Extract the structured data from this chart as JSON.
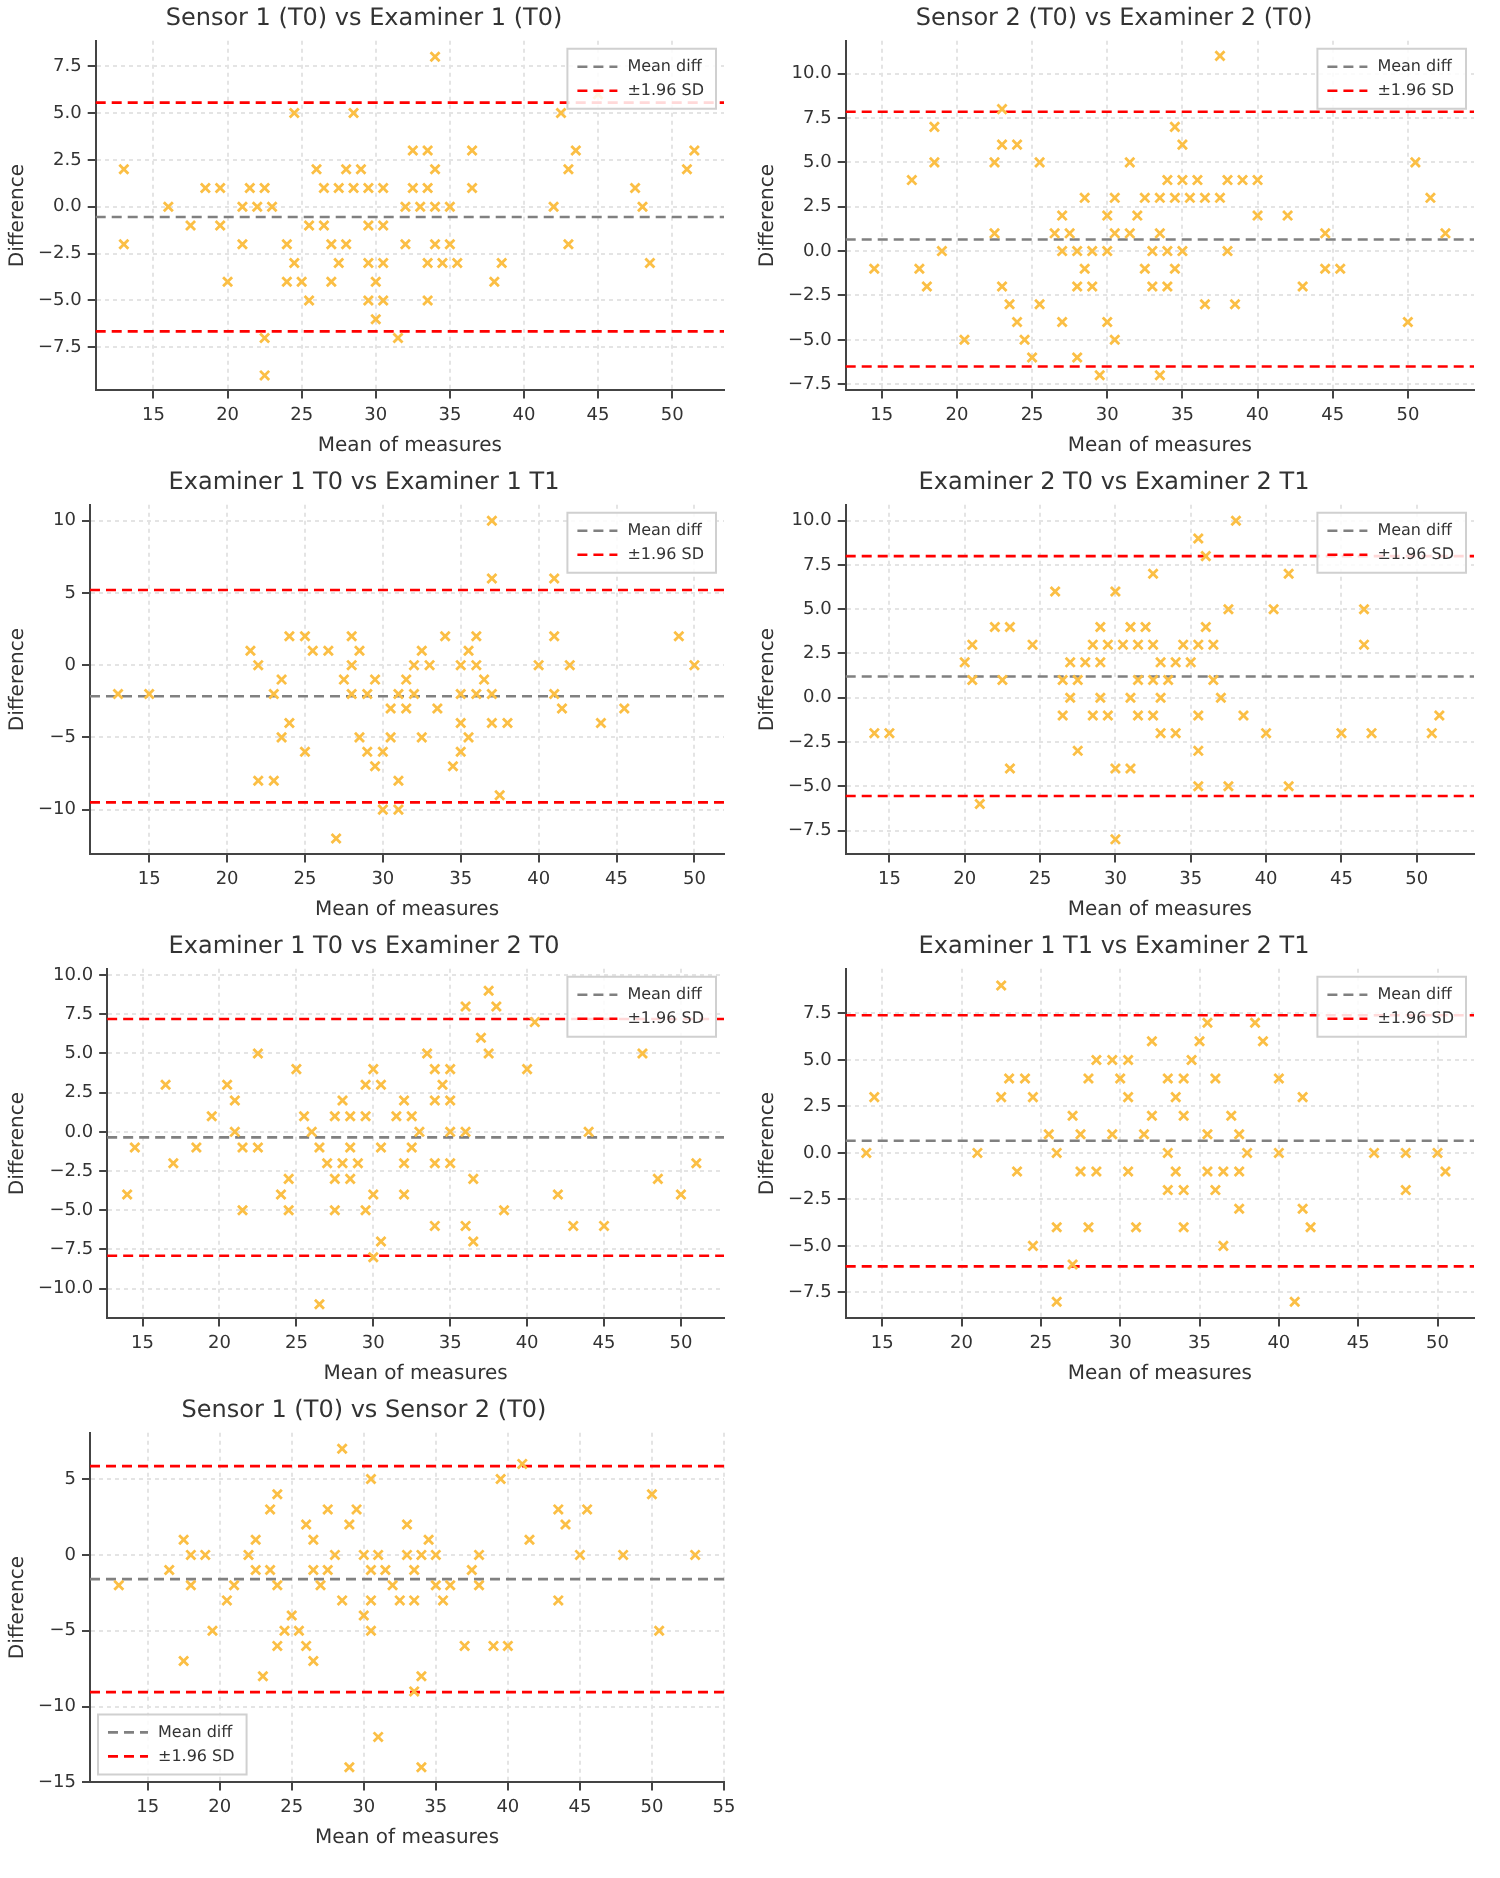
{
  "chart_data": [
    {
      "type": "scatter",
      "title": "Sensor 1 (T0) vs Examiner 1 (T0)",
      "xlabel": "Mean of measures",
      "ylabel": "Difference",
      "xlim": [
        11.1,
        53.5
      ],
      "xticks": [
        15,
        20,
        25,
        30,
        35,
        40,
        45,
        50
      ],
      "ylim": [
        -9.8,
        8.85
      ],
      "yticks": [
        {
          "value": -7.5,
          "label": "−7.5"
        },
        {
          "value": -5,
          "label": "−5.0"
        },
        {
          "value": -2.5,
          "label": "−2.5"
        },
        {
          "value": 0,
          "label": "0.0"
        },
        {
          "value": 2.5,
          "label": "2.5"
        },
        {
          "value": 5,
          "label": "5.0"
        },
        {
          "value": 7.5,
          "label": "7.5"
        }
      ],
      "grid": true,
      "legend": "top right",
      "marker": "cross",
      "series": [
        {
          "color": "#fbbf45",
          "x": [
            34,
            45,
            24.5,
            28.5,
            42.5,
            32.5,
            33.5,
            36.5,
            43.5,
            51.5,
            13,
            26,
            28,
            29,
            34,
            43,
            51,
            18.5,
            19.5,
            21.5,
            22.5,
            26.5,
            27.5,
            28.5,
            29.5,
            30.5,
            32.5,
            33.5,
            36.5,
            47.5,
            16,
            21,
            22,
            23,
            32,
            33,
            34,
            35,
            42,
            48,
            17.5,
            19.5,
            25.5,
            26.5,
            29.5,
            30.5,
            13,
            21,
            24,
            27,
            28,
            32,
            34,
            35,
            43,
            24.5,
            27.5,
            29.5,
            30.5,
            33.5,
            34.5,
            35.5,
            38.5,
            48.5,
            20,
            24,
            25,
            27,
            30,
            38,
            25.5,
            29.5,
            30.5,
            33.5,
            30,
            22.5,
            31.5,
            22.5
          ],
          "values": [
            8,
            6,
            5,
            5,
            5,
            3,
            3,
            3,
            3,
            3,
            2,
            2,
            2,
            2,
            2,
            2,
            2,
            1,
            1,
            1,
            1,
            1,
            1,
            1,
            1,
            1,
            1,
            1,
            1,
            1,
            0,
            0,
            0,
            0,
            0,
            0,
            0,
            0,
            0,
            0,
            -1,
            -1,
            -1,
            -1,
            -1,
            -1,
            -2,
            -2,
            -2,
            -2,
            -2,
            -2,
            -2,
            -2,
            -2,
            -3,
            -3,
            -3,
            -3,
            -3,
            -3,
            -3,
            -3,
            -3,
            -4,
            -4,
            -4,
            -4,
            -4,
            -4,
            -5,
            -5,
            -5,
            -5,
            -6,
            -7,
            -7,
            -9
          ]
        }
      ],
      "ref_lines": [
        {
          "axis": "y",
          "value": -0.55,
          "label": "Mean diff",
          "color": "#808080",
          "line_style": "dashed"
        },
        {
          "axis": "y",
          "value": 5.55,
          "label": "±1.96 SD",
          "color": "#ff0000",
          "line_style": "dashed"
        },
        {
          "axis": "y",
          "value": -6.65,
          "color": "#ff0000",
          "line_style": "dashed"
        }
      ]
    },
    {
      "type": "scatter",
      "title": "Sensor 2 (T0) vs Examiner 2 (T0)",
      "xlabel": "Mean of measures",
      "ylabel": "Difference",
      "xlim": [
        12.6,
        54.4
      ],
      "xticks": [
        15,
        20,
        25,
        30,
        35,
        40,
        45,
        50
      ],
      "ylim": [
        -7.85,
        11.85
      ],
      "yticks": [
        {
          "value": -7.5,
          "label": "−7.5"
        },
        {
          "value": -5,
          "label": "−5.0"
        },
        {
          "value": -2.5,
          "label": "−2.5"
        },
        {
          "value": 0,
          "label": "0.0"
        },
        {
          "value": 2.5,
          "label": "2.5"
        },
        {
          "value": 5,
          "label": "5.0"
        },
        {
          "value": 7.5,
          "label": "7.5"
        },
        {
          "value": 10,
          "label": "10.0"
        }
      ],
      "grid": true,
      "legend": "top right",
      "marker": "cross",
      "series": [
        {
          "color": "#fbbf45",
          "x": [
            37.5,
            23,
            18.5,
            34.5,
            23,
            24,
            35,
            18.5,
            22.5,
            25.5,
            31.5,
            50.5,
            17,
            34,
            35,
            36,
            38,
            39,
            40,
            28.5,
            30.5,
            32.5,
            33.5,
            34.5,
            35.5,
            36.5,
            37.5,
            51.5,
            27,
            30,
            32,
            40,
            42,
            22.5,
            26.5,
            27.5,
            30.5,
            31.5,
            33.5,
            44.5,
            52.5,
            19,
            27,
            28,
            29,
            30,
            33,
            34,
            35,
            38,
            14.5,
            17.5,
            28.5,
            32.5,
            34.5,
            44.5,
            45.5,
            18,
            23,
            28,
            29,
            33,
            34,
            43,
            23.5,
            25.5,
            36.5,
            38.5,
            24,
            27,
            30,
            50,
            20.5,
            24.5,
            30.5,
            25,
            28,
            29.5,
            33.5
          ],
          "values": [
            11,
            8,
            7,
            7,
            6,
            6,
            6,
            5,
            5,
            5,
            5,
            5,
            4,
            4,
            4,
            4,
            4,
            4,
            4,
            3,
            3,
            3,
            3,
            3,
            3,
            3,
            3,
            3,
            2,
            2,
            2,
            2,
            2,
            1,
            1,
            1,
            1,
            1,
            1,
            1,
            1,
            0,
            0,
            0,
            0,
            0,
            0,
            0,
            0,
            0,
            -1,
            -1,
            -1,
            -1,
            -1,
            -1,
            -1,
            -2,
            -2,
            -2,
            -2,
            -2,
            -2,
            -2,
            -3,
            -3,
            -3,
            -3,
            -4,
            -4,
            -4,
            -4,
            -5,
            -5,
            -5,
            -6,
            -6,
            -7,
            -7
          ]
        }
      ],
      "ref_lines": [
        {
          "axis": "y",
          "value": 0.65,
          "label": "Mean diff",
          "color": "#808080",
          "line_style": "dashed"
        },
        {
          "axis": "y",
          "value": 7.85,
          "label": "±1.96 SD",
          "color": "#ff0000",
          "line_style": "dashed"
        },
        {
          "axis": "y",
          "value": -6.5,
          "color": "#ff0000",
          "line_style": "dashed"
        }
      ]
    },
    {
      "type": "scatter",
      "title": "Examiner 1 T0 vs Examiner 1 T1",
      "xlabel": "Mean of measures",
      "ylabel": "Difference",
      "xlim": [
        11.2,
        51.9
      ],
      "xticks": [
        15,
        20,
        25,
        30,
        35,
        40,
        45,
        50
      ],
      "ylim": [
        -13.1,
        11.1
      ],
      "yticks": [
        {
          "value": -10,
          "label": "−10"
        },
        {
          "value": -5,
          "label": "−5"
        },
        0,
        5,
        10
      ],
      "grid": true,
      "legend": "top right",
      "marker": "cross",
      "series": [
        {
          "color": "#fbbf45",
          "x": [
            37,
            37,
            41,
            24,
            25,
            28,
            34,
            36,
            41,
            49,
            21.5,
            25.5,
            26.5,
            28.5,
            32.5,
            35.5,
            22,
            28,
            32,
            33,
            35,
            36,
            40,
            42,
            50,
            23.5,
            27.5,
            29.5,
            31.5,
            36.5,
            13,
            15,
            23,
            28,
            29,
            31,
            32,
            35,
            36,
            37,
            41,
            30.5,
            31.5,
            33.5,
            41.5,
            45.5,
            24,
            35,
            37,
            38,
            44,
            23.5,
            28.5,
            30.5,
            32.5,
            35.5,
            25,
            29,
            30,
            35,
            29.5,
            34.5,
            22,
            23,
            31,
            37.5,
            30,
            31,
            27
          ],
          "values": [
            10,
            6,
            6,
            2,
            2,
            2,
            2,
            2,
            2,
            2,
            1,
            1,
            1,
            1,
            1,
            1,
            0,
            0,
            0,
            0,
            0,
            0,
            0,
            0,
            0,
            -1,
            -1,
            -1,
            -1,
            -1,
            -2,
            -2,
            -2,
            -2,
            -2,
            -2,
            -2,
            -2,
            -2,
            -2,
            -2,
            -3,
            -3,
            -3,
            -3,
            -3,
            -4,
            -4,
            -4,
            -4,
            -4,
            -5,
            -5,
            -5,
            -5,
            -5,
            -6,
            -6,
            -6,
            -6,
            -7,
            -7,
            -8,
            -8,
            -8,
            -9,
            -10,
            -10,
            -12
          ]
        }
      ],
      "ref_lines": [
        {
          "axis": "y",
          "value": -2.15,
          "label": "Mean diff",
          "color": "#808080",
          "line_style": "dashed"
        },
        {
          "axis": "y",
          "value": 5.2,
          "label": "±1.96 SD",
          "color": "#ff0000",
          "line_style": "dashed"
        },
        {
          "axis": "y",
          "value": -9.5,
          "color": "#ff0000",
          "line_style": "dashed"
        }
      ]
    },
    {
      "type": "scatter",
      "title": "Examiner 2 T0 vs Examiner 2 T1",
      "xlabel": "Mean of measures",
      "ylabel": "Difference",
      "xlim": [
        12.1,
        53.8
      ],
      "xticks": [
        15,
        20,
        25,
        30,
        35,
        40,
        45,
        50
      ],
      "ylim": [
        -8.85,
        10.9
      ],
      "yticks": [
        {
          "value": -7.5,
          "label": "−7.5"
        },
        {
          "value": -5,
          "label": "−5.0"
        },
        {
          "value": -2.5,
          "label": "−2.5"
        },
        {
          "value": 0,
          "label": "0.0"
        },
        {
          "value": 2.5,
          "label": "2.5"
        },
        {
          "value": 5,
          "label": "5.0"
        },
        {
          "value": 7.5,
          "label": "7.5"
        },
        {
          "value": 10,
          "label": "10.0"
        }
      ],
      "grid": true,
      "legend": "top right",
      "marker": "cross",
      "series": [
        {
          "color": "#fbbf45",
          "x": [
            38,
            35.5,
            36,
            32.5,
            41.5,
            26,
            30,
            37.5,
            40.5,
            46.5,
            22,
            23,
            29,
            31,
            32,
            36,
            20.5,
            24.5,
            28.5,
            29.5,
            30.5,
            31.5,
            32.5,
            34.5,
            35.5,
            36.5,
            46.5,
            20,
            27,
            28,
            29,
            33,
            34,
            35,
            20.5,
            22.5,
            26.5,
            27.5,
            31.5,
            32.5,
            33.5,
            36.5,
            27,
            29,
            31,
            33,
            37,
            26.5,
            28.5,
            29.5,
            31.5,
            32.5,
            35.5,
            38.5,
            51.5,
            14,
            15,
            33,
            34,
            40,
            45,
            47,
            51,
            27.5,
            35.5,
            23,
            30,
            31,
            35.5,
            37.5,
            41.5,
            21,
            30
          ],
          "values": [
            10,
            9,
            8,
            7,
            7,
            6,
            6,
            5,
            5,
            5,
            4,
            4,
            4,
            4,
            4,
            4,
            3,
            3,
            3,
            3,
            3,
            3,
            3,
            3,
            3,
            3,
            3,
            2,
            2,
            2,
            2,
            2,
            2,
            2,
            1,
            1,
            1,
            1,
            1,
            1,
            1,
            1,
            0,
            0,
            0,
            0,
            0,
            -1,
            -1,
            -1,
            -1,
            -1,
            -1,
            -1,
            -1,
            -2,
            -2,
            -2,
            -2,
            -2,
            -2,
            -2,
            -2,
            -3,
            -3,
            -4,
            -4,
            -4,
            -5,
            -5,
            -5,
            -6,
            -8
          ]
        }
      ],
      "ref_lines": [
        {
          "axis": "y",
          "value": 1.2,
          "label": "Mean diff",
          "color": "#808080",
          "line_style": "dashed"
        },
        {
          "axis": "y",
          "value": 8.0,
          "label": "±1.96 SD",
          "color": "#ff0000",
          "line_style": "dashed"
        },
        {
          "axis": "y",
          "value": -5.55,
          "color": "#ff0000",
          "line_style": "dashed"
        }
      ]
    },
    {
      "type": "scatter",
      "title": "Examiner 1 T0 vs Examiner 2 T0",
      "xlabel": "Mean of measures",
      "ylabel": "Difference",
      "xlim": [
        12.7,
        52.8
      ],
      "xticks": [
        15,
        20,
        25,
        30,
        35,
        40,
        45,
        50
      ],
      "ylim": [
        -11.9,
        10.4
      ],
      "yticks": [
        {
          "value": -10,
          "label": "−10.0"
        },
        {
          "value": -7.5,
          "label": "−7.5"
        },
        {
          "value": -5,
          "label": "−5.0"
        },
        {
          "value": -2.5,
          "label": "−2.5"
        },
        {
          "value": 0,
          "label": "0.0"
        },
        {
          "value": 2.5,
          "label": "2.5"
        },
        {
          "value": 5,
          "label": "5.0"
        },
        {
          "value": 7.5,
          "label": "7.5"
        },
        {
          "value": 10,
          "label": "10.0"
        }
      ],
      "grid": true,
      "legend": "top right",
      "marker": "cross",
      "series": [
        {
          "color": "#fbbf45",
          "x": [
            37.5,
            36,
            38,
            40.5,
            37,
            22.5,
            33.5,
            37.5,
            47.5,
            25,
            30,
            34,
            35,
            40,
            16.5,
            20.5,
            29.5,
            30.5,
            34.5,
            21,
            28,
            32,
            34,
            35,
            19.5,
            25.5,
            27.5,
            28.5,
            29.5,
            31.5,
            32.5,
            21,
            26,
            33,
            35,
            36,
            44,
            14.5,
            18.5,
            21.5,
            22.5,
            26.5,
            28.5,
            30.5,
            32.5,
            17,
            27,
            28,
            29,
            32,
            34,
            35,
            51,
            24.5,
            27.5,
            28.5,
            36.5,
            48.5,
            14,
            24,
            30,
            32,
            42,
            50,
            21.5,
            24.5,
            27.5,
            29.5,
            38.5,
            34,
            36,
            43,
            45,
            30.5,
            36.5,
            30,
            26.5
          ],
          "values": [
            9,
            8,
            8,
            7,
            6,
            5,
            5,
            5,
            5,
            4,
            4,
            4,
            4,
            4,
            3,
            3,
            3,
            3,
            3,
            2,
            2,
            2,
            2,
            2,
            1,
            1,
            1,
            1,
            1,
            1,
            1,
            0,
            0,
            0,
            0,
            0,
            0,
            -1,
            -1,
            -1,
            -1,
            -1,
            -1,
            -1,
            -1,
            -2,
            -2,
            -2,
            -2,
            -2,
            -2,
            -2,
            -2,
            -3,
            -3,
            -3,
            -3,
            -3,
            -4,
            -4,
            -4,
            -4,
            -4,
            -4,
            -5,
            -5,
            -5,
            -5,
            -5,
            -6,
            -6,
            -6,
            -6,
            -7,
            -7,
            -8,
            -11
          ]
        }
      ],
      "ref_lines": [
        {
          "axis": "y",
          "value": -0.35,
          "label": "Mean diff",
          "color": "#808080",
          "line_style": "dashed"
        },
        {
          "axis": "y",
          "value": 7.2,
          "label": "±1.96 SD",
          "color": "#ff0000",
          "line_style": "dashed"
        },
        {
          "axis": "y",
          "value": -7.9,
          "color": "#ff0000",
          "line_style": "dashed"
        }
      ]
    },
    {
      "type": "scatter",
      "title": "Examiner 1 T1 vs Examiner 2 T1",
      "xlabel": "Mean of measures",
      "ylabel": "Difference",
      "xlim": [
        12.7,
        52.3
      ],
      "xticks": [
        15,
        20,
        25,
        30,
        35,
        40,
        45,
        50
      ],
      "ylim": [
        -8.9,
        9.9
      ],
      "yticks": [
        {
          "value": -7.5,
          "label": "−7.5"
        },
        {
          "value": -5,
          "label": "−5.0"
        },
        {
          "value": -2.5,
          "label": "−2.5"
        },
        {
          "value": 0,
          "label": "0.0"
        },
        {
          "value": 2.5,
          "label": "2.5"
        },
        {
          "value": 5,
          "label": "5.0"
        },
        {
          "value": 7.5,
          "label": "7.5"
        }
      ],
      "grid": true,
      "legend": "top right",
      "marker": "cross",
      "series": [
        {
          "color": "#fbbf45",
          "x": [
            22.5,
            35.5,
            38.5,
            32,
            35,
            39,
            28.5,
            29.5,
            30.5,
            34.5,
            23,
            24,
            28,
            30,
            33,
            34,
            36,
            40,
            14.5,
            22.5,
            24.5,
            30.5,
            33.5,
            41.5,
            27,
            32,
            34,
            37,
            25.5,
            27.5,
            29.5,
            31.5,
            35.5,
            37.5,
            14,
            21,
            26,
            33,
            38,
            40,
            46,
            48,
            50,
            23.5,
            27.5,
            28.5,
            30.5,
            33.5,
            35.5,
            36.5,
            37.5,
            50.5,
            33,
            34,
            36,
            48,
            37.5,
            41.5,
            26,
            28,
            31,
            34,
            42,
            24.5,
            36.5,
            27,
            26,
            41
          ],
          "values": [
            9,
            7,
            7,
            6,
            6,
            6,
            5,
            5,
            5,
            5,
            4,
            4,
            4,
            4,
            4,
            4,
            4,
            4,
            3,
            3,
            3,
            3,
            3,
            3,
            2,
            2,
            2,
            2,
            1,
            1,
            1,
            1,
            1,
            1,
            0,
            0,
            0,
            0,
            0,
            0,
            0,
            0,
            0,
            -1,
            -1,
            -1,
            -1,
            -1,
            -1,
            -1,
            -1,
            -1,
            -2,
            -2,
            -2,
            -2,
            -3,
            -3,
            -4,
            -4,
            -4,
            -4,
            -4,
            -5,
            -5,
            -6,
            -8,
            -8
          ]
        }
      ],
      "ref_lines": [
        {
          "axis": "y",
          "value": 0.65,
          "label": "Mean diff",
          "color": "#808080",
          "line_style": "dashed"
        },
        {
          "axis": "y",
          "value": 7.4,
          "label": "±1.96 SD",
          "color": "#ff0000",
          "line_style": "dashed"
        },
        {
          "axis": "y",
          "value": -6.1,
          "color": "#ff0000",
          "line_style": "dashed"
        }
      ]
    },
    {
      "type": "scatter",
      "title": "Sensor 1 (T0) vs Sensor 2 (T0)",
      "xlabel": "Mean of measures",
      "ylabel": "Difference",
      "xlim": [
        11,
        55
      ],
      "xticks": [
        15,
        20,
        25,
        30,
        35,
        40,
        45,
        50,
        55
      ],
      "ylim": [
        -15,
        8.05
      ],
      "yticks": [
        {
          "value": -15,
          "label": "−15"
        },
        {
          "value": -10,
          "label": "−10"
        },
        {
          "value": -5,
          "label": "−5"
        },
        0,
        5
      ],
      "grid": true,
      "legend": "bottom left",
      "marker": "cross",
      "series": [
        {
          "color": "#fbbf45",
          "x": [
            28.5,
            41,
            30.5,
            39.5,
            24,
            50,
            23.5,
            27.5,
            29.5,
            43.5,
            45.5,
            26,
            29,
            33,
            44,
            17.5,
            22.5,
            26.5,
            34.5,
            41.5,
            18,
            19,
            22,
            28,
            30,
            31,
            33,
            34,
            35,
            38,
            45,
            48,
            53,
            16.5,
            22.5,
            23.5,
            26.5,
            27.5,
            30.5,
            31.5,
            33.5,
            37.5,
            13,
            18,
            21,
            24,
            27,
            32,
            35,
            36,
            38,
            20.5,
            28.5,
            30.5,
            32.5,
            33.5,
            35.5,
            43.5,
            25,
            30,
            19.5,
            24.5,
            25.5,
            30.5,
            50.5,
            24,
            26,
            37,
            39,
            40,
            17.5,
            26.5,
            23,
            34,
            33.5,
            31,
            29,
            34
          ],
          "values": [
            7,
            6,
            5,
            5,
            4,
            4,
            3,
            3,
            3,
            3,
            3,
            2,
            2,
            2,
            2,
            1,
            1,
            1,
            1,
            1,
            0,
            0,
            0,
            0,
            0,
            0,
            0,
            0,
            0,
            0,
            0,
            0,
            0,
            -1,
            -1,
            -1,
            -1,
            -1,
            -1,
            -1,
            -1,
            -1,
            -2,
            -2,
            -2,
            -2,
            -2,
            -2,
            -2,
            -2,
            -2,
            -3,
            -3,
            -3,
            -3,
            -3,
            -3,
            -3,
            -4,
            -4,
            -5,
            -5,
            -5,
            -5,
            -5,
            -6,
            -6,
            -6,
            -6,
            -6,
            -7,
            -7,
            -8,
            -8,
            -9,
            -12,
            -14,
            -14
          ]
        }
      ],
      "ref_lines": [
        {
          "axis": "y",
          "value": -1.6,
          "label": "Mean diff",
          "color": "#808080",
          "line_style": "dashed"
        },
        {
          "axis": "y",
          "value": 5.85,
          "label": "±1.96 SD",
          "color": "#ff0000",
          "line_style": "dashed"
        },
        {
          "axis": "y",
          "value": -9.05,
          "color": "#ff0000",
          "line_style": "dashed"
        }
      ]
    }
  ]
}
